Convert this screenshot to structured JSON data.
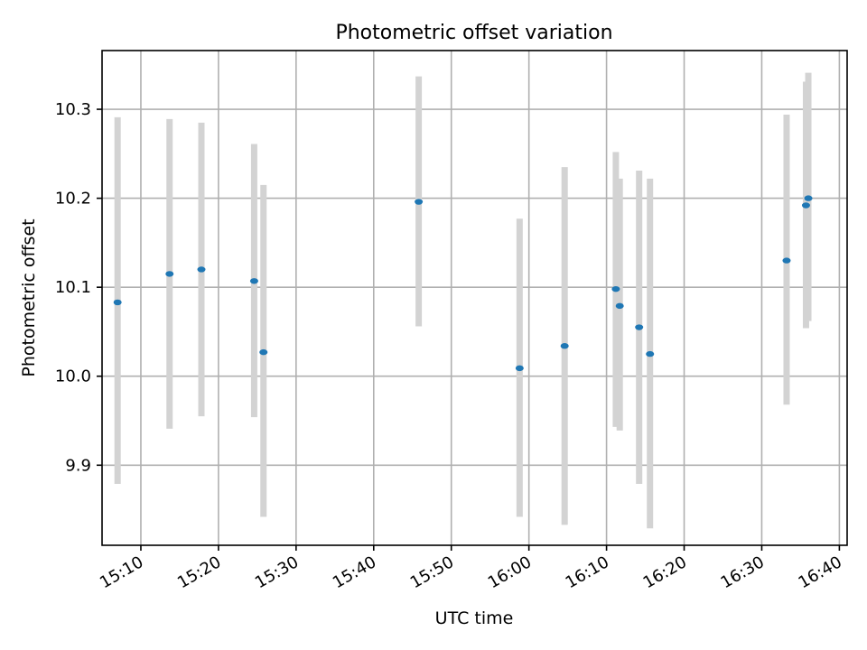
{
  "chart_data": {
    "type": "scatter",
    "title": "Photometric offset variation",
    "xlabel": "UTC time",
    "ylabel": "Photometric offset",
    "x_is_time": true,
    "xlim": [
      "15:05",
      "16:41"
    ],
    "ylim": [
      9.81,
      10.366
    ],
    "x_ticks": [
      "15:10",
      "15:20",
      "15:30",
      "15:40",
      "15:50",
      "16:00",
      "16:10",
      "16:20",
      "16:30",
      "16:40"
    ],
    "y_ticks": [
      9.9,
      10.0,
      10.1,
      10.2,
      10.3
    ],
    "y_tick_labels": [
      "9.9",
      "10.0",
      "10.1",
      "10.2",
      "10.3"
    ],
    "grid": true,
    "marker_color": "#1f77b4",
    "errorbar_color": "#d3d3d3",
    "points": [
      {
        "x": "15:07",
        "y": 10.083,
        "yerr_low": 9.879,
        "yerr_high": 10.291
      },
      {
        "x": "15:13.7",
        "y": 10.115,
        "yerr_low": 9.941,
        "yerr_high": 10.289
      },
      {
        "x": "15:17.8",
        "y": 10.12,
        "yerr_low": 9.955,
        "yerr_high": 10.285
      },
      {
        "x": "15:24.6",
        "y": 10.107,
        "yerr_low": 9.954,
        "yerr_high": 10.261
      },
      {
        "x": "15:25.8",
        "y": 10.027,
        "yerr_low": 9.842,
        "yerr_high": 10.215
      },
      {
        "x": "15:45.8",
        "y": 10.196,
        "yerr_low": 10.056,
        "yerr_high": 10.337
      },
      {
        "x": "15:58.8",
        "y": 10.009,
        "yerr_low": 9.842,
        "yerr_high": 10.177
      },
      {
        "x": "16:04.6",
        "y": 10.034,
        "yerr_low": 9.833,
        "yerr_high": 10.235
      },
      {
        "x": "16:11.2",
        "y": 10.098,
        "yerr_low": 9.943,
        "yerr_high": 10.252
      },
      {
        "x": "16:11.7",
        "y": 10.079,
        "yerr_low": 9.939,
        "yerr_high": 10.222
      },
      {
        "x": "16:14.2",
        "y": 10.055,
        "yerr_low": 9.879,
        "yerr_high": 10.231
      },
      {
        "x": "16:15.6",
        "y": 10.025,
        "yerr_low": 9.829,
        "yerr_high": 10.222
      },
      {
        "x": "16:33.2",
        "y": 10.13,
        "yerr_low": 9.968,
        "yerr_high": 10.294
      },
      {
        "x": "16:35.7",
        "y": 10.192,
        "yerr_low": 10.054,
        "yerr_high": 10.331
      },
      {
        "x": "16:36",
        "y": 10.2,
        "yerr_low": 10.062,
        "yerr_high": 10.341
      }
    ]
  }
}
